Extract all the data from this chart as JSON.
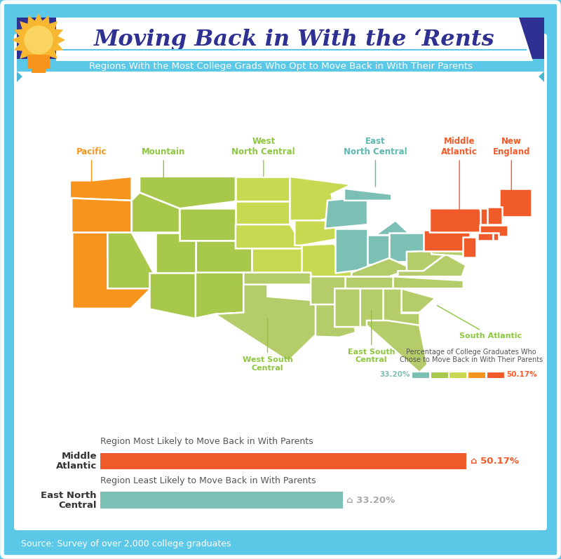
{
  "title": "Moving Back in With the ‘Rents",
  "subtitle": "Regions With the Most College Grads Who Opt to Move Back in With Their Parents",
  "source": "Source: Survey of over 2,000 college graduates",
  "bg_color": "#5bc8e8",
  "header_bg": "#2e3192",
  "white": "#ffffff",
  "ribbon_color": "#5bc8e8",
  "legend_colors": [
    "#7bbfb5",
    "#a8c84b",
    "#c8d850",
    "#f7941d",
    "#f15a29"
  ],
  "min_pct": "33.20%",
  "max_pct": "50.17%",
  "bar_most_color": "#f15a29",
  "bar_least_color": "#7bbfb5",
  "bar_most_value": 50.17,
  "bar_least_value": 33.2,
  "bar_max_scale": 57,
  "most_region": "Middle\nAtlantic",
  "least_region": "East North\nCentral",
  "most_desc": "Region Most Likely to Move Back in With Parents",
  "least_desc": "Region Least Likely to Move Back in With Parents",
  "title_color": "#2e3192",
  "region_colors": {
    "pacific": "#f7941d",
    "mountain": "#a8c84b",
    "wnc": "#c8d850",
    "enc": "#7bbfb5",
    "wsc": "#b5cc6a",
    "esc": "#b5cc6a",
    "sa": "#b5cc6a",
    "ma": "#f15a29",
    "ne": "#f15a29"
  }
}
